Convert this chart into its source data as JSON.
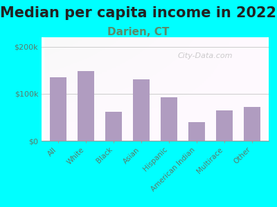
{
  "title": "Median per capita income in 2022",
  "subtitle": "Darien, CT",
  "categories": [
    "All",
    "White",
    "Black",
    "Asian",
    "Hispanic",
    "American Indian",
    "Multirace",
    "Other"
  ],
  "values": [
    135000,
    148000,
    62000,
    130000,
    93000,
    40000,
    65000,
    72000
  ],
  "bar_color": "#b09cc0",
  "background_color": "#00ffff",
  "yticks": [
    0,
    100000,
    200000
  ],
  "ytick_labels": [
    "$0",
    "$100k",
    "$200k"
  ],
  "ylim": [
    0,
    220000
  ],
  "title_fontsize": 15,
  "subtitle_fontsize": 11,
  "subtitle_color": "#5a8a6a",
  "tick_color": "#5a7a6a",
  "watermark": "City-Data.com"
}
